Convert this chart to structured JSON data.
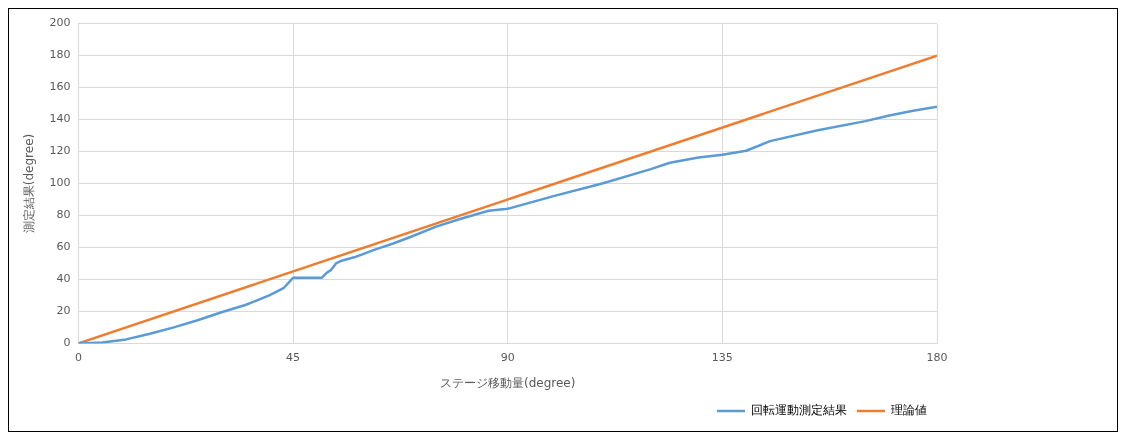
{
  "chart_data": {
    "type": "line",
    "xlabel": "ステージ移動量(degree)",
    "ylabel": "測定結果(degree)",
    "xlim": [
      0,
      180
    ],
    "xticks": [
      0,
      45,
      90,
      135,
      180
    ],
    "ylim": [
      0,
      200
    ],
    "yticks": [
      0,
      20,
      40,
      60,
      80,
      100,
      120,
      140,
      160,
      180,
      200
    ],
    "grid": true,
    "legend": "bottom right",
    "marker": "none",
    "line_style": "solid",
    "series": [
      {
        "name": "回転運動測定結果",
        "color": "#5b9bd5",
        "x": [
          0,
          5,
          10,
          15,
          20,
          25,
          30,
          35,
          40,
          43,
          45,
          51,
          52,
          53,
          54,
          55,
          58,
          62,
          66,
          70,
          75,
          80,
          86,
          90,
          100,
          110,
          120,
          124,
          130,
          135,
          140,
          145,
          155,
          165,
          170,
          175,
          180
        ],
        "values": [
          0,
          0.5,
          2.5,
          6,
          10,
          14.5,
          19.5,
          24,
          30,
          34.5,
          41,
          41,
          44,
          46,
          50,
          51.5,
          54,
          58.5,
          62.5,
          67,
          73,
          77.8,
          83,
          84.2,
          92.4,
          100.2,
          109,
          113,
          116.2,
          118,
          120.5,
          126.5,
          133.3,
          139,
          142.5,
          145.5,
          148
        ]
      },
      {
        "name": "理論値",
        "color": "#ed7d31",
        "x": [
          0,
          180
        ],
        "values": [
          0,
          180
        ]
      }
    ]
  }
}
